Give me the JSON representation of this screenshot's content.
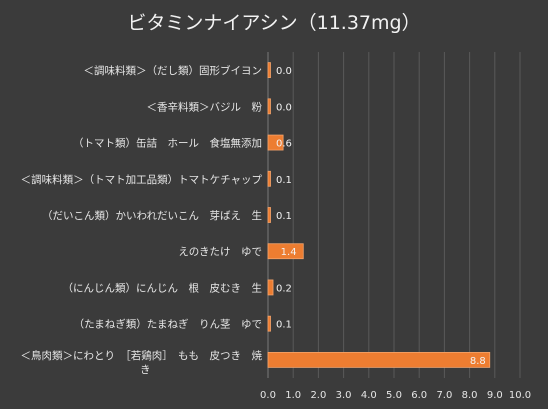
{
  "chart_data": {
    "type": "bar",
    "orientation": "horizontal",
    "title": "ビタミンナイアシン（11.37mg）",
    "categories": [
      "＜調味料類＞（だし類）固形ブイヨン",
      "＜香辛料類＞バジル　粉",
      "（トマト類）缶詰　ホール　食塩無添加",
      "＜調味料類＞（トマト加工品類）トマトケチャップ",
      "（だいこん類）かいわれだいこん　芽ばえ　生",
      "えのきたけ　ゆで",
      "（にんじん類）にんじん　根　皮むき　生",
      "（たまねぎ類）たまねぎ　りん茎　ゆで",
      "＜鳥肉類＞にわとり　［若鶏肉］　もも　皮つき　焼き"
    ],
    "values": [
      0.0,
      0.0,
      0.6,
      0.1,
      0.1,
      1.4,
      0.2,
      0.1,
      8.8
    ],
    "data_labels": [
      "0.0",
      "0.0",
      "0.6",
      "0.1",
      "0.1",
      "1.4",
      "0.2",
      "0.1",
      "8.8"
    ],
    "x_ticks": [
      "0.0",
      "1.0",
      "2.0",
      "3.0",
      "4.0",
      "5.0",
      "6.0",
      "7.0",
      "8.0",
      "9.0",
      "10.0"
    ],
    "xlim": [
      0,
      10
    ],
    "grid": true,
    "legend": "none",
    "colors": {
      "background": "#3b3b3b",
      "bar": "#ed7d31",
      "bar_edge": "#f4a46c",
      "text": "#e6e6e6",
      "gridline": "#5a5a5a"
    }
  }
}
